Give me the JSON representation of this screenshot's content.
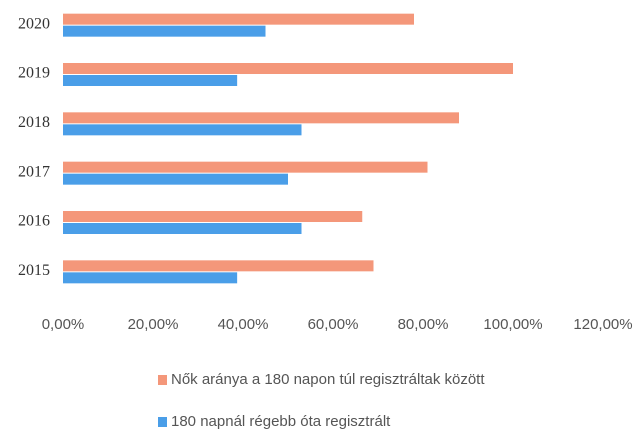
{
  "chart_data": {
    "type": "hbar",
    "categories": [
      "2015",
      "2016",
      "2017",
      "2018",
      "2019",
      "2020"
    ],
    "series": [
      {
        "name": "Nők aránya a 180 napon túl regisztráltak között",
        "color": "#f4977a",
        "values": [
          69,
          66.5,
          81,
          88,
          100,
          78
        ]
      },
      {
        "name": "180 napnál régebb óta regisztrált",
        "color": "#4a9ee8",
        "values": [
          38.7,
          53,
          50,
          53,
          38.7,
          45
        ]
      }
    ],
    "xlim": [
      0,
      120
    ],
    "xticks": [
      {
        "value": 0,
        "label": "0,00%"
      },
      {
        "value": 20,
        "label": "20,00%"
      },
      {
        "value": 40,
        "label": "40,00%"
      },
      {
        "value": 60,
        "label": "60,00%"
      },
      {
        "value": 80,
        "label": "80,00%"
      },
      {
        "value": 100,
        "label": "100,00%"
      },
      {
        "value": 120,
        "label": "120,00%"
      }
    ],
    "grid": false
  }
}
